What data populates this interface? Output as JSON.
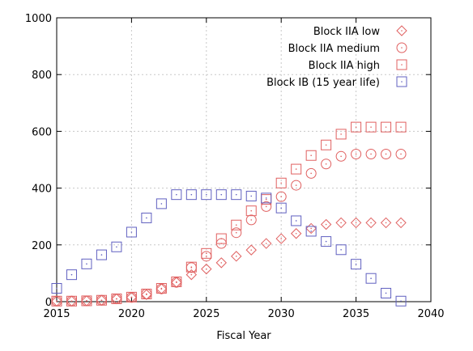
{
  "chart_data": {
    "type": "scatter",
    "title": "",
    "xlabel": "Fiscal Year",
    "ylabel": "",
    "xlim": [
      2015,
      2040
    ],
    "ylim": [
      0,
      1000
    ],
    "xticks": [
      "2015",
      "2020",
      "2025",
      "2030",
      "2035",
      "2040"
    ],
    "yticks": [
      "0",
      "200",
      "400",
      "600",
      "800",
      "1000"
    ],
    "grid": true,
    "legend_position": "top-right",
    "x": [
      2015,
      2016,
      2017,
      2018,
      2019,
      2020,
      2021,
      2022,
      2023,
      2024,
      2025,
      2026,
      2027,
      2028,
      2029,
      2030,
      2031,
      2032,
      2033,
      2034,
      2035,
      2036,
      2037,
      2038
    ],
    "series": [
      {
        "name": "Block IIA low",
        "marker": "diamond",
        "color": "#e06060",
        "values": [
          2,
          2,
          3,
          5,
          10,
          15,
          25,
          45,
          68,
          95,
          115,
          137,
          160,
          182,
          205,
          222,
          240,
          258,
          272,
          278,
          278,
          278,
          278,
          278
        ]
      },
      {
        "name": "Block IIA medium",
        "marker": "circle",
        "color": "#e06060",
        "values": [
          2,
          2,
          3,
          5,
          10,
          15,
          27,
          45,
          68,
          120,
          160,
          205,
          243,
          288,
          335,
          370,
          410,
          452,
          485,
          512,
          520,
          520,
          520,
          520
        ]
      },
      {
        "name": "Block IIA high",
        "marker": "square",
        "color": "#e06060",
        "values": [
          2,
          2,
          3,
          5,
          10,
          16,
          27,
          47,
          70,
          122,
          170,
          222,
          270,
          320,
          360,
          418,
          467,
          515,
          552,
          590,
          615,
          615,
          615,
          615
        ]
      },
      {
        "name": "Block IB (15 year life)",
        "marker": "square",
        "color": "#6060c0",
        "values": [
          47,
          95,
          133,
          165,
          193,
          245,
          295,
          345,
          377,
          377,
          377,
          377,
          377,
          372,
          365,
          330,
          285,
          248,
          212,
          183,
          132,
          82,
          30,
          2
        ]
      }
    ]
  }
}
